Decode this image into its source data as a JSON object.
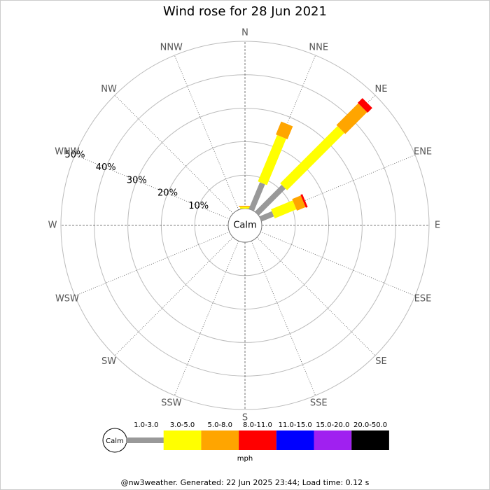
{
  "chart_data": {
    "type": "wind-rose",
    "title": "Wind rose for 28 Jun 2021",
    "categories": [
      "N",
      "NNE",
      "NE",
      "ENE",
      "E",
      "ESE",
      "SE",
      "SSE",
      "S",
      "SSW",
      "SW",
      "WSW",
      "W",
      "WNW",
      "NW",
      "NNW"
    ],
    "calm_label": "Calm",
    "rlim": [
      0,
      50
    ],
    "rticks": [
      {
        "value": 10,
        "label": "10%"
      },
      {
        "value": 20,
        "label": "20%"
      },
      {
        "value": 30,
        "label": "30%"
      },
      {
        "value": 40,
        "label": "40%"
      },
      {
        "value": 50,
        "label": "50%"
      }
    ],
    "series": [
      {
        "name": "1.0-3.0",
        "color": "#999999",
        "values": [
          0,
          8.6,
          11.3,
          4,
          0,
          0,
          0,
          0,
          0,
          0,
          0,
          0,
          0,
          0,
          0,
          0
        ]
      },
      {
        "name": "3.0-5.0",
        "color": "#ffff00",
        "values": [
          0.5,
          15,
          24.2,
          7,
          0,
          0,
          0,
          0,
          0,
          0,
          0,
          0,
          0,
          0,
          0,
          0
        ]
      },
      {
        "name": "5.0-8.0",
        "color": "#ffa500",
        "values": [
          0.3,
          4.2,
          9.2,
          2.8,
          0,
          0,
          0,
          0,
          0,
          0,
          0,
          0,
          0,
          0,
          0,
          0
        ]
      },
      {
        "name": "8.0-11.0",
        "color": "#ff0000",
        "values": [
          0,
          0,
          2,
          0.6,
          0,
          0,
          0,
          0,
          0,
          0,
          0,
          0,
          0,
          0,
          0,
          0
        ]
      },
      {
        "name": "11.0-15.0",
        "color": "#0000ff",
        "values": [
          0,
          0,
          0,
          0,
          0,
          0,
          0,
          0,
          0,
          0,
          0,
          0,
          0,
          0,
          0,
          0
        ]
      },
      {
        "name": "15.0-20.0",
        "color": "#a020f0",
        "values": [
          0,
          0,
          0,
          0,
          0,
          0,
          0,
          0,
          0,
          0,
          0,
          0,
          0,
          0,
          0,
          0
        ]
      },
      {
        "name": "20.0-50.0",
        "color": "#000000",
        "values": [
          0,
          0,
          0,
          0,
          0,
          0,
          0,
          0,
          0,
          0,
          0,
          0,
          0,
          0,
          0,
          0
        ]
      }
    ],
    "legend_unit": "mph",
    "footer": "@nw3weather. Generated: 22 Jun 2025 23:44; Load time: 0.12 s"
  }
}
